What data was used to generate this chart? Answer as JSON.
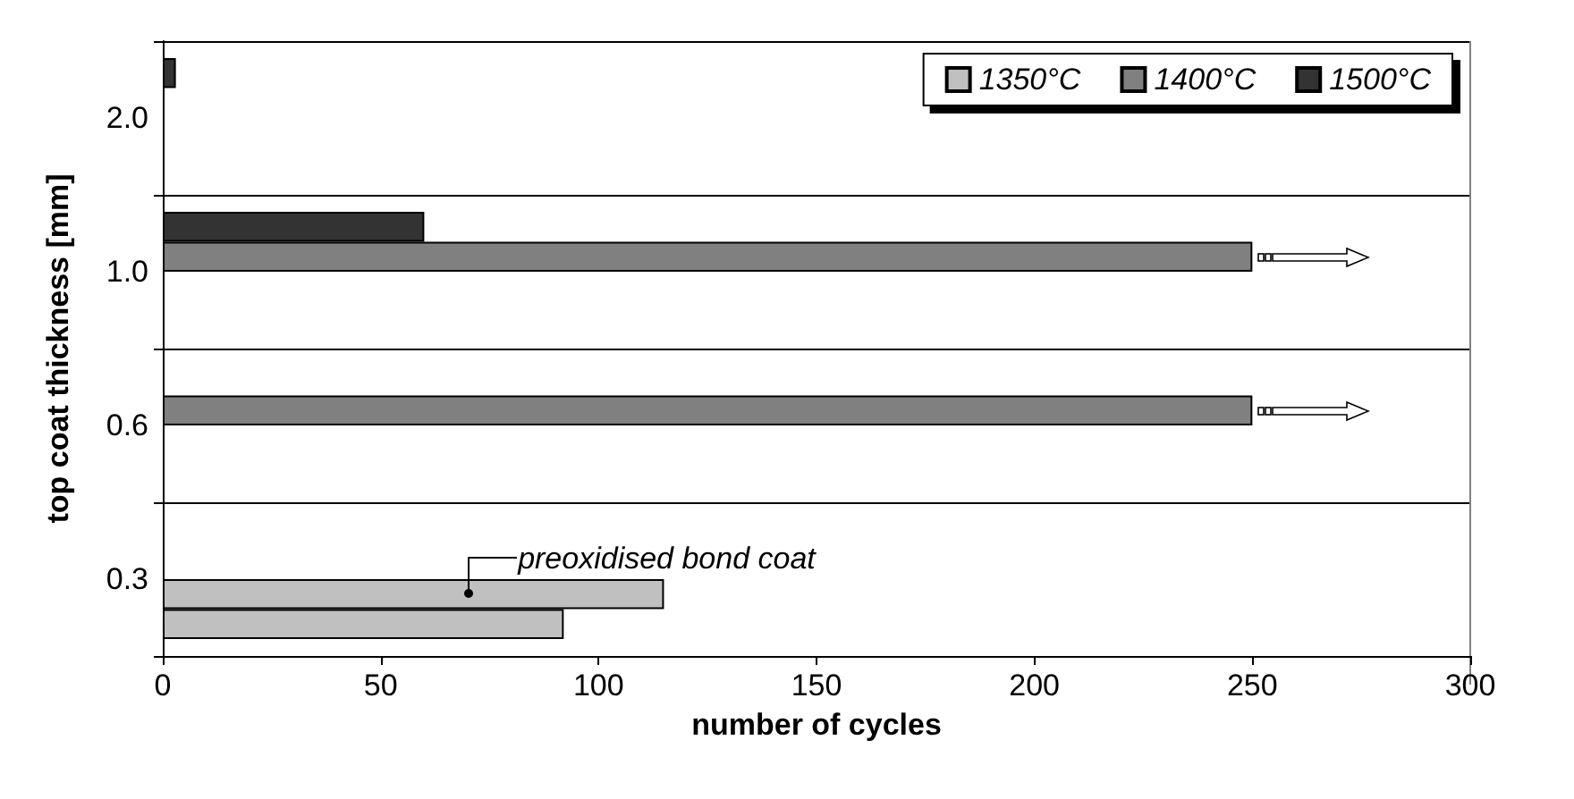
{
  "chart_data": {
    "type": "bar",
    "orientation": "horizontal",
    "xlabel": "number of cycles",
    "ylabel": "top coat thickness [mm]",
    "categories": [
      "2.0",
      "1.0",
      "0.6",
      "0.3"
    ],
    "series": [
      {
        "name": "1350°C",
        "color": "#c0c0c0",
        "values": [
          null,
          null,
          null,
          92
        ]
      },
      {
        "color": "#c0c0c0",
        "values": [
          null,
          null,
          null,
          115
        ]
      },
      {
        "name": "1400°C",
        "color": "#808080",
        "values": [
          null,
          250,
          250,
          null
        ]
      },
      {
        "name": "1500°C",
        "color": "#333333",
        "values": [
          3,
          60,
          null,
          null
        ]
      }
    ],
    "xlim": [
      0,
      300
    ],
    "xticks": [
      0,
      50,
      100,
      150,
      200,
      250,
      300
    ],
    "annotations": [
      {
        "text": "preoxidised bond coat",
        "x": 70,
        "y": "0.3"
      }
    ],
    "grid": "y",
    "legend": "top right"
  }
}
